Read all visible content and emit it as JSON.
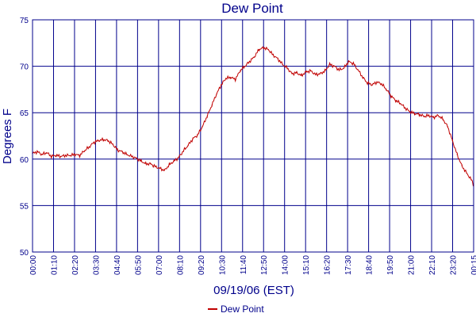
{
  "chart_data": {
    "type": "line",
    "title": "Dew Point",
    "xlabel": "09/19/06 (EST)",
    "ylabel": "Degrees F",
    "ylim": [
      50,
      75
    ],
    "yticks": [
      50,
      55,
      60,
      65,
      70,
      75
    ],
    "xticks": [
      "00:00",
      "01:10",
      "02:20",
      "03:30",
      "04:40",
      "05:50",
      "07:00",
      "08:10",
      "09:20",
      "10:30",
      "11:40",
      "12:50",
      "14:00",
      "15:10",
      "16:20",
      "17:30",
      "18:40",
      "19:50",
      "21:00",
      "22:10",
      "23:20",
      "00:15"
    ],
    "grid": true,
    "legend": "bottom-center",
    "colors": {
      "series": "#c00000",
      "grid": "#00008b",
      "text": "#00008b"
    },
    "series": [
      {
        "name": "Dew Point",
        "points": [
          [
            0,
            60.6
          ],
          [
            10,
            60.8
          ],
          [
            20,
            60.5
          ],
          [
            30,
            60.7
          ],
          [
            40,
            60.3
          ],
          [
            50,
            60.4
          ],
          [
            60,
            60.3
          ],
          [
            70,
            60.4
          ],
          [
            80,
            60.4
          ],
          [
            90,
            60.5
          ],
          [
            100,
            60.4
          ],
          [
            110,
            60.9
          ],
          [
            120,
            61.3
          ],
          [
            130,
            61.8
          ],
          [
            140,
            62.0
          ],
          [
            150,
            62.1
          ],
          [
            160,
            62.0
          ],
          [
            170,
            61.6
          ],
          [
            180,
            61.0
          ],
          [
            190,
            60.8
          ],
          [
            200,
            60.5
          ],
          [
            210,
            60.3
          ],
          [
            220,
            60.1
          ],
          [
            230,
            59.8
          ],
          [
            240,
            59.5
          ],
          [
            250,
            59.5
          ],
          [
            260,
            59.2
          ],
          [
            270,
            59.0
          ],
          [
            280,
            58.8
          ],
          [
            290,
            59.4
          ],
          [
            300,
            59.8
          ],
          [
            310,
            60.2
          ],
          [
            320,
            60.9
          ],
          [
            330,
            61.5
          ],
          [
            340,
            62.2
          ],
          [
            350,
            62.6
          ],
          [
            360,
            63.5
          ],
          [
            370,
            64.6
          ],
          [
            380,
            65.8
          ],
          [
            390,
            67.0
          ],
          [
            400,
            68.0
          ],
          [
            410,
            68.7
          ],
          [
            420,
            68.8
          ],
          [
            430,
            68.6
          ],
          [
            440,
            69.5
          ],
          [
            450,
            70.0
          ],
          [
            460,
            70.5
          ],
          [
            470,
            71.0
          ],
          [
            480,
            71.8
          ],
          [
            490,
            72.0
          ],
          [
            500,
            71.8
          ],
          [
            510,
            71.2
          ],
          [
            520,
            70.8
          ],
          [
            530,
            70.2
          ],
          [
            540,
            69.8
          ],
          [
            550,
            69.2
          ],
          [
            560,
            69.3
          ],
          [
            570,
            69.0
          ],
          [
            580,
            69.4
          ],
          [
            590,
            69.5
          ],
          [
            600,
            69.1
          ],
          [
            610,
            69.2
          ],
          [
            620,
            69.5
          ],
          [
            630,
            70.2
          ],
          [
            640,
            70.0
          ],
          [
            650,
            69.6
          ],
          [
            660,
            69.8
          ],
          [
            670,
            70.5
          ],
          [
            680,
            70.3
          ],
          [
            690,
            69.6
          ],
          [
            700,
            68.8
          ],
          [
            710,
            68.2
          ],
          [
            720,
            68.0
          ],
          [
            730,
            68.3
          ],
          [
            740,
            68.1
          ],
          [
            750,
            67.5
          ],
          [
            760,
            66.8
          ],
          [
            770,
            66.3
          ],
          [
            780,
            66.0
          ],
          [
            790,
            65.5
          ],
          [
            800,
            65.1
          ],
          [
            810,
            64.9
          ],
          [
            820,
            64.8
          ],
          [
            830,
            64.6
          ],
          [
            840,
            64.7
          ],
          [
            850,
            64.5
          ],
          [
            860,
            64.7
          ],
          [
            870,
            64.3
          ],
          [
            880,
            63.5
          ],
          [
            890,
            62.0
          ],
          [
            900,
            60.5
          ],
          [
            910,
            59.3
          ],
          [
            920,
            58.5
          ],
          [
            930,
            57.8
          ],
          [
            935,
            57.2
          ]
        ]
      }
    ]
  }
}
